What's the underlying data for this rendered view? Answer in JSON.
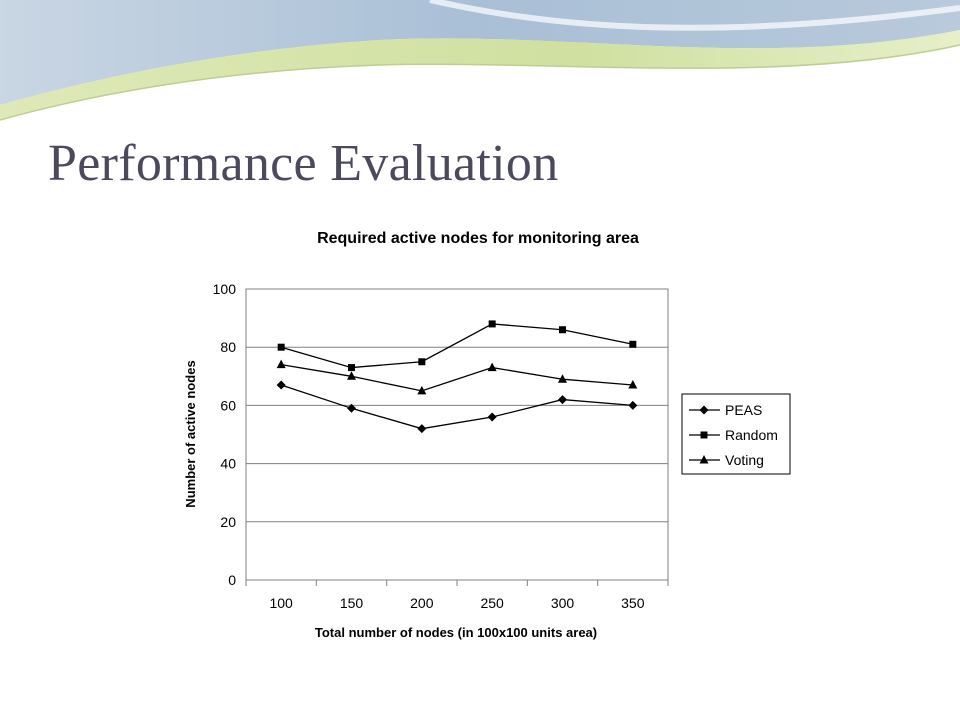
{
  "slide": {
    "title": "Performance Evaluation"
  },
  "chart_data": {
    "type": "line",
    "title": "Required active nodes for monitoring area",
    "xlabel": "Total number of nodes (in 100x100 units area)",
    "ylabel": "Number of active nodes",
    "categories": [
      "100",
      "150",
      "200",
      "250",
      "300",
      "350"
    ],
    "ylim": [
      0,
      100
    ],
    "yticks": [
      0,
      20,
      40,
      60,
      80,
      100
    ],
    "grid": true,
    "legend_position": "right",
    "series": [
      {
        "name": "PEAS",
        "marker": "diamond",
        "values": [
          67,
          59,
          52,
          56,
          62,
          60
        ]
      },
      {
        "name": "Random",
        "marker": "square",
        "values": [
          80,
          73,
          75,
          88,
          86,
          81
        ]
      },
      {
        "name": "Voting",
        "marker": "triangle",
        "values": [
          74,
          70,
          65,
          73,
          69,
          67
        ]
      }
    ],
    "line_color": "#000000",
    "grid_color": "#808080"
  }
}
